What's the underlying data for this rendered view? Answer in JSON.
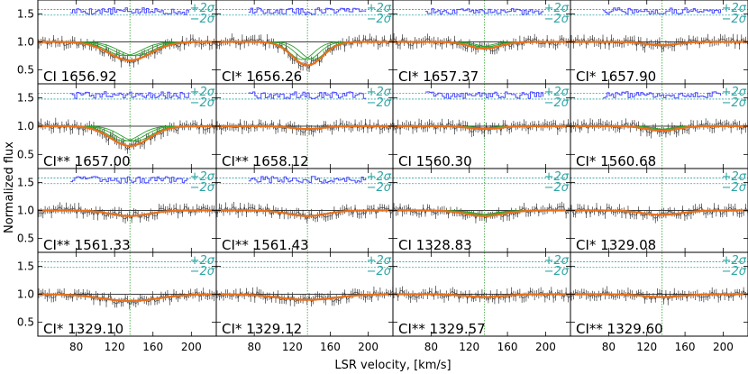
{
  "chart_data": {
    "type": "line",
    "xlabel": "LSR velocity, [km/s]",
    "ylabel": "Normalized flux",
    "xlim": [
      40,
      226
    ],
    "ylim": [
      0.25,
      1.75
    ],
    "x_ticks": [
      80,
      120,
      160,
      200
    ],
    "y_ticks": [
      0.5,
      1.0,
      1.5
    ],
    "y_tick_labels": [
      "0.5",
      "1.0",
      "1.5"
    ],
    "reference_velocity": 136,
    "residual_band_labels": [
      "+2σ",
      "−2σ"
    ],
    "series_colors": {
      "data": "#333333",
      "total_fit": "#e8701a",
      "components": "#2ca02c",
      "residuals": "#4a4aff",
      "sigma_lines": "#2ca6a4",
      "reference": "#2ca02c"
    },
    "panels": [
      {
        "label": "CI 1656.92",
        "depth": 0.33,
        "width": 22,
        "residuals": true,
        "components": true
      },
      {
        "label": "CI* 1656.26",
        "depth": 0.42,
        "width": 16,
        "residuals": true,
        "components": true
      },
      {
        "label": "CI* 1657.37",
        "depth": 0.12,
        "width": 16,
        "residuals": true,
        "components": true
      },
      {
        "label": "CI* 1657.90",
        "depth": 0.06,
        "width": 16,
        "residuals": true,
        "components": false
      },
      {
        "label": "CI** 1657.00",
        "depth": 0.35,
        "width": 20,
        "residuals": true,
        "components": true
      },
      {
        "label": "CI** 1658.12",
        "depth": 0.05,
        "width": 16,
        "residuals": true,
        "components": false
      },
      {
        "label": "CI 1560.30",
        "depth": 0.05,
        "width": 16,
        "residuals": true,
        "components": true
      },
      {
        "label": "CI* 1560.68",
        "depth": 0.08,
        "width": 16,
        "residuals": true,
        "components": true
      },
      {
        "label": "CI** 1561.33",
        "depth": 0.1,
        "width": 20,
        "residuals": true,
        "components": false
      },
      {
        "label": "CI** 1561.43",
        "depth": 0.1,
        "width": 20,
        "residuals": true,
        "components": false
      },
      {
        "label": "CI 1328.83",
        "depth": 0.1,
        "width": 20,
        "residuals": false,
        "components": true
      },
      {
        "label": "CI* 1329.08",
        "depth": 0.08,
        "width": 20,
        "residuals": false,
        "components": false
      },
      {
        "label": "CI* 1329.10",
        "depth": 0.12,
        "width": 30,
        "residuals": false,
        "components": false
      },
      {
        "label": "CI* 1329.12",
        "depth": 0.1,
        "width": 30,
        "residuals": false,
        "components": false
      },
      {
        "label": "CI** 1329.57",
        "depth": 0.05,
        "width": 20,
        "residuals": false,
        "components": false
      },
      {
        "label": "CI** 1329.60",
        "depth": 0.05,
        "width": 20,
        "residuals": false,
        "components": false
      }
    ]
  }
}
